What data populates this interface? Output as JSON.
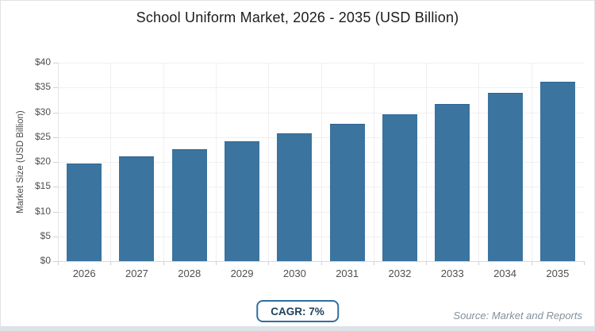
{
  "chart_data": {
    "type": "bar",
    "title": "School Uniform Market, 2026 - 2035 (USD Billion)",
    "ylabel": "Market Size (USD Billion)",
    "xlabel": "",
    "categories": [
      "2026",
      "2027",
      "2028",
      "2029",
      "2030",
      "2031",
      "2032",
      "2033",
      "2034",
      "2035"
    ],
    "values": [
      19.7,
      21.1,
      22.6,
      24.2,
      25.8,
      27.7,
      29.6,
      31.7,
      33.9,
      36.2
    ],
    "ylim": [
      0,
      40
    ],
    "ytick_step": 5,
    "ytick_prefix": "$",
    "grid": true,
    "legend_position": "none",
    "bar_color": "#3b749f"
  },
  "footer": {
    "cagr_label": "CAGR: 7%",
    "source": "Source: Market and Reports"
  },
  "colors": {
    "bar": "#3b749f",
    "bar_border": "#2e6491",
    "gridline": "#f0f0f3",
    "baseline": "#d9d9dc",
    "axis_line": "#e4e4e7",
    "tick": "#d2d2d5",
    "title_text": "#1c1c1c",
    "tick_label": "#4f4f52",
    "badge_border": "#2f6f9f",
    "badge_text": "#1e3f5e",
    "source_text": "#83909a",
    "bottom_strip": "#dbe2e9"
  }
}
